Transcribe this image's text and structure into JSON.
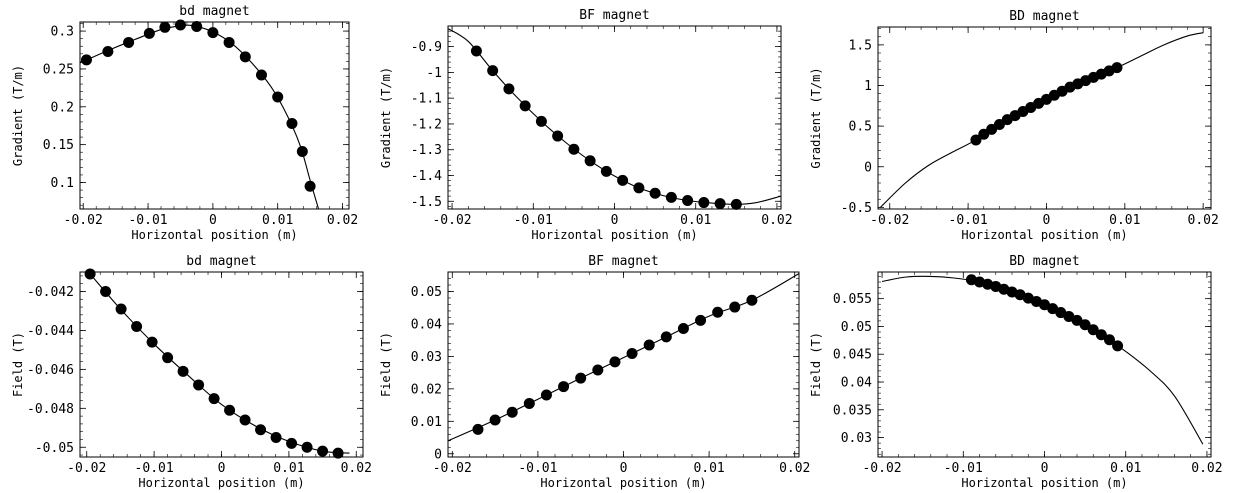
{
  "chart_data": [
    {
      "type": "scatter",
      "title": "bd magnet",
      "xlabel": "Horizontal position (m)",
      "ylabel": "Gradient (T/m)",
      "xlim": [
        -0.0205,
        0.021
      ],
      "ylim": [
        0.065,
        0.312
      ],
      "xticks": [
        -0.02,
        -0.01,
        0,
        0.01,
        0.02
      ],
      "xtick_labels": [
        "-0.02",
        "-0.01",
        "0",
        "0.01",
        "0.02"
      ],
      "yticks": [
        0.1,
        0.15,
        0.2,
        0.25,
        0.3
      ],
      "ytick_labels": [
        "0.1",
        "0.15",
        "0.2",
        "0.25",
        "0.3"
      ],
      "grid": false,
      "series": [
        {
          "points": [
            [
              -0.0195,
              0.262
            ],
            [
              -0.0162,
              0.273
            ],
            [
              -0.013,
              0.285
            ],
            [
              -0.0098,
              0.297
            ],
            [
              -0.0074,
              0.305
            ],
            [
              -0.005,
              0.308
            ],
            [
              -0.0025,
              0.306
            ],
            [
              0,
              0.298
            ],
            [
              0.0025,
              0.285
            ],
            [
              0.005,
              0.266
            ],
            [
              0.0075,
              0.242
            ],
            [
              0.01,
              0.213
            ],
            [
              0.0122,
              0.178
            ],
            [
              0.0138,
              0.141
            ],
            [
              0.015,
              0.095
            ]
          ],
          "curve": [
            [
              -0.0205,
              0.258
            ],
            [
              -0.016,
              0.275
            ],
            [
              -0.012,
              0.289
            ],
            [
              -0.008,
              0.302
            ],
            [
              -0.005,
              0.307
            ],
            [
              -0.003,
              0.307
            ],
            [
              0,
              0.299
            ],
            [
              0.003,
              0.283
            ],
            [
              0.006,
              0.258
            ],
            [
              0.009,
              0.226
            ],
            [
              0.0115,
              0.188
            ],
            [
              0.0135,
              0.148
            ],
            [
              0.015,
              0.103
            ],
            [
              0.0163,
              0.065
            ]
          ]
        }
      ]
    },
    {
      "type": "scatter",
      "title": "BF magnet",
      "xlabel": "Horizontal position (m)",
      "ylabel": "Gradient (T/m)",
      "xlim": [
        -0.0205,
        0.0205
      ],
      "ylim": [
        -1.53,
        -0.82
      ],
      "xticks": [
        -0.02,
        -0.01,
        0,
        0.01,
        0.02
      ],
      "xtick_labels": [
        "-0.02",
        "-0.01",
        "0",
        "0.01",
        "0.02"
      ],
      "yticks": [
        -1.5,
        -1.4,
        -1.3,
        -1.2,
        -1.1,
        -1.0,
        -0.9
      ],
      "ytick_labels": [
        "-1.5",
        "-1.4",
        "-1.3",
        "-1.2",
        "-1.1",
        "-1",
        "-0.9"
      ],
      "grid": false,
      "series": [
        {
          "points": [
            [
              -0.017,
              -0.917
            ],
            [
              -0.015,
              -0.993
            ],
            [
              -0.013,
              -1.064
            ],
            [
              -0.011,
              -1.13
            ],
            [
              -0.009,
              -1.19
            ],
            [
              -0.007,
              -1.247
            ],
            [
              -0.005,
              -1.298
            ],
            [
              -0.003,
              -1.343
            ],
            [
              -0.001,
              -1.384
            ],
            [
              0.001,
              -1.419
            ],
            [
              0.003,
              -1.448
            ],
            [
              0.005,
              -1.469
            ],
            [
              0.007,
              -1.485
            ],
            [
              0.009,
              -1.497
            ],
            [
              0.011,
              -1.505
            ],
            [
              0.013,
              -1.509
            ],
            [
              0.015,
              -1.512
            ]
          ],
          "curve": [
            [
              -0.0205,
              -0.83
            ],
            [
              -0.018,
              -0.88
            ],
            [
              -0.015,
              -0.993
            ],
            [
              -0.012,
              -1.097
            ],
            [
              -0.009,
              -1.19
            ],
            [
              -0.006,
              -1.272
            ],
            [
              -0.003,
              -1.343
            ],
            [
              0,
              -1.402
            ],
            [
              0.003,
              -1.448
            ],
            [
              0.006,
              -1.478
            ],
            [
              0.009,
              -1.497
            ],
            [
              0.012,
              -1.507
            ],
            [
              0.015,
              -1.512
            ],
            [
              0.0175,
              -1.505
            ],
            [
              0.0205,
              -1.48
            ]
          ]
        }
      ]
    },
    {
      "type": "scatter",
      "title": "BD magnet",
      "xlabel": "Horizontal position (m)",
      "ylabel": "Gradient (T/m)",
      "xlim": [
        -0.0215,
        0.021
      ],
      "ylim": [
        -0.52,
        1.72
      ],
      "xticks": [
        -0.02,
        -0.01,
        0,
        0.01,
        0.02
      ],
      "xtick_labels": [
        "-0.02",
        "-0.01",
        "0",
        "0.01",
        "0.02"
      ],
      "yticks": [
        -0.5,
        0,
        0.5,
        1,
        1.5
      ],
      "ytick_labels": [
        "-0.5",
        "0",
        "0.5",
        "1",
        "1.5"
      ],
      "grid": false,
      "series": [
        {
          "points": [
            [
              -0.009,
              0.33
            ],
            [
              -0.008,
              0.4
            ],
            [
              -0.007,
              0.46
            ],
            [
              -0.006,
              0.52
            ],
            [
              -0.005,
              0.58
            ],
            [
              -0.004,
              0.63
            ],
            [
              -0.003,
              0.68
            ],
            [
              -0.002,
              0.73
            ],
            [
              -0.001,
              0.78
            ],
            [
              0,
              0.83
            ],
            [
              0.001,
              0.88
            ],
            [
              0.002,
              0.93
            ],
            [
              0.003,
              0.98
            ],
            [
              0.004,
              1.02
            ],
            [
              0.005,
              1.06
            ],
            [
              0.006,
              1.1
            ],
            [
              0.007,
              1.14
            ],
            [
              0.008,
              1.18
            ],
            [
              0.009,
              1.22
            ]
          ],
          "curve": [
            [
              -0.0212,
              -0.5
            ],
            [
              -0.018,
              -0.2
            ],
            [
              -0.015,
              0.02
            ],
            [
              -0.012,
              0.18
            ],
            [
              -0.009,
              0.33
            ],
            [
              -0.006,
              0.52
            ],
            [
              -0.003,
              0.68
            ],
            [
              0,
              0.83
            ],
            [
              0.003,
              0.98
            ],
            [
              0.006,
              1.1
            ],
            [
              0.009,
              1.22
            ],
            [
              0.012,
              1.36
            ],
            [
              0.015,
              1.5
            ],
            [
              0.018,
              1.61
            ],
            [
              0.02,
              1.65
            ]
          ]
        }
      ]
    },
    {
      "type": "scatter",
      "title": "bd magnet",
      "xlabel": "Horizontal position (m)",
      "ylabel": "Field (T)",
      "xlim": [
        -0.021,
        0.021
      ],
      "ylim": [
        -0.0505,
        -0.041
      ],
      "xticks": [
        -0.02,
        -0.01,
        0,
        0.01,
        0.02
      ],
      "xtick_labels": [
        "-0.02",
        "-0.01",
        "0",
        "0.01",
        "0.02"
      ],
      "yticks": [
        -0.05,
        -0.048,
        -0.046,
        -0.044,
        -0.042
      ],
      "ytick_labels": [
        "-0.05",
        "-0.048",
        "-0.046",
        "-0.044",
        "-0.042"
      ],
      "grid": false,
      "series": [
        {
          "points": [
            [
              -0.0195,
              -0.0411
            ],
            [
              -0.0172,
              -0.042
            ],
            [
              -0.0149,
              -0.0429
            ],
            [
              -0.0126,
              -0.0438
            ],
            [
              -0.0103,
              -0.0446
            ],
            [
              -0.008,
              -0.0454
            ],
            [
              -0.0057,
              -0.0461
            ],
            [
              -0.0034,
              -0.0468
            ],
            [
              -0.0011,
              -0.0475
            ],
            [
              0.0012,
              -0.0481
            ],
            [
              0.0035,
              -0.0486
            ],
            [
              0.0058,
              -0.0491
            ],
            [
              0.0081,
              -0.0495
            ],
            [
              0.0104,
              -0.0498
            ],
            [
              0.0127,
              -0.05
            ],
            [
              0.015,
              -0.0502
            ],
            [
              0.0173,
              -0.0503
            ]
          ],
          "curve": [
            [
              -0.0195,
              -0.0411
            ],
            [
              -0.015,
              -0.0429
            ],
            [
              -0.01,
              -0.0447
            ],
            [
              -0.005,
              -0.0463
            ],
            [
              0,
              -0.0478
            ],
            [
              0.005,
              -0.0489
            ],
            [
              0.01,
              -0.0497
            ],
            [
              0.015,
              -0.0502
            ],
            [
              0.019,
              -0.0503
            ]
          ]
        }
      ]
    },
    {
      "type": "scatter",
      "title": "BF magnet",
      "xlabel": "Horizontal position (m)",
      "ylabel": "Field (T)",
      "xlim": [
        -0.0205,
        0.0205
      ],
      "ylim": [
        -0.001,
        0.056
      ],
      "xticks": [
        -0.02,
        -0.01,
        0,
        0.01,
        0.02
      ],
      "xtick_labels": [
        "-0.02",
        "-0.01",
        "0",
        "0.01",
        "0.02"
      ],
      "yticks": [
        0,
        0.01,
        0.02,
        0.03,
        0.04,
        0.05
      ],
      "ytick_labels": [
        "0",
        "0.01",
        "0.02",
        "0.03",
        "0.04",
        "0.05"
      ],
      "grid": false,
      "series": [
        {
          "points": [
            [
              -0.017,
              0.0075
            ],
            [
              -0.015,
              0.0104
            ],
            [
              -0.013,
              0.0128
            ],
            [
              -0.011,
              0.0155
            ],
            [
              -0.009,
              0.0181
            ],
            [
              -0.007,
              0.0207
            ],
            [
              -0.005,
              0.0233
            ],
            [
              -0.003,
              0.0258
            ],
            [
              -0.001,
              0.0283
            ],
            [
              0.001,
              0.0309
            ],
            [
              0.003,
              0.0335
            ],
            [
              0.005,
              0.036
            ],
            [
              0.007,
              0.0386
            ],
            [
              0.009,
              0.0411
            ],
            [
              0.011,
              0.0436
            ],
            [
              0.013,
              0.0452
            ],
            [
              0.015,
              0.0473
            ]
          ],
          "curve": [
            [
              -0.0205,
              0.004
            ],
            [
              -0.015,
              0.0104
            ],
            [
              -0.01,
              0.0168
            ],
            [
              -0.005,
              0.0233
            ],
            [
              0,
              0.0296
            ],
            [
              0.005,
              0.036
            ],
            [
              0.01,
              0.0424
            ],
            [
              0.015,
              0.0473
            ],
            [
              0.0205,
              0.0555
            ]
          ]
        }
      ]
    },
    {
      "type": "scatter",
      "title": "BD magnet",
      "xlabel": "Horizontal position (m)",
      "ylabel": "Field (T)",
      "xlim": [
        -0.0205,
        0.0205
      ],
      "ylim": [
        0.0265,
        0.0598
      ],
      "xticks": [
        -0.02,
        -0.01,
        0,
        0.01,
        0.02
      ],
      "xtick_labels": [
        "-0.02",
        "-0.01",
        "0",
        "0.01",
        "0.02"
      ],
      "yticks": [
        0.03,
        0.035,
        0.04,
        0.045,
        0.05,
        0.055
      ],
      "ytick_labels": [
        "0.03",
        "0.035",
        "0.04",
        "0.045",
        "0.05",
        "0.055"
      ],
      "grid": false,
      "series": [
        {
          "points": [
            [
              -0.009,
              0.0584
            ],
            [
              -0.008,
              0.058
            ],
            [
              -0.007,
              0.0576
            ],
            [
              -0.006,
              0.0572
            ],
            [
              -0.005,
              0.0567
            ],
            [
              -0.004,
              0.0562
            ],
            [
              -0.003,
              0.0557
            ],
            [
              -0.002,
              0.0551
            ],
            [
              -0.001,
              0.0545
            ],
            [
              0,
              0.0539
            ],
            [
              0.001,
              0.0532
            ],
            [
              0.002,
              0.0525
            ],
            [
              0.003,
              0.0518
            ],
            [
              0.004,
              0.0511
            ],
            [
              0.005,
              0.0503
            ],
            [
              0.006,
              0.0494
            ],
            [
              0.007,
              0.0485
            ],
            [
              0.008,
              0.0476
            ],
            [
              0.009,
              0.0465
            ]
          ],
          "curve": [
            [
              -0.02,
              0.0581
            ],
            [
              -0.017,
              0.0589
            ],
            [
              -0.014,
              0.059
            ],
            [
              -0.011,
              0.0587
            ],
            [
              -0.008,
              0.058
            ],
            [
              -0.005,
              0.0567
            ],
            [
              -0.002,
              0.0551
            ],
            [
              0.001,
              0.0532
            ],
            [
              0.004,
              0.0511
            ],
            [
              0.007,
              0.0485
            ],
            [
              0.01,
              0.0455
            ],
            [
              0.013,
              0.042
            ],
            [
              0.016,
              0.0375
            ],
            [
              0.0195,
              0.0288
            ]
          ]
        }
      ]
    }
  ]
}
